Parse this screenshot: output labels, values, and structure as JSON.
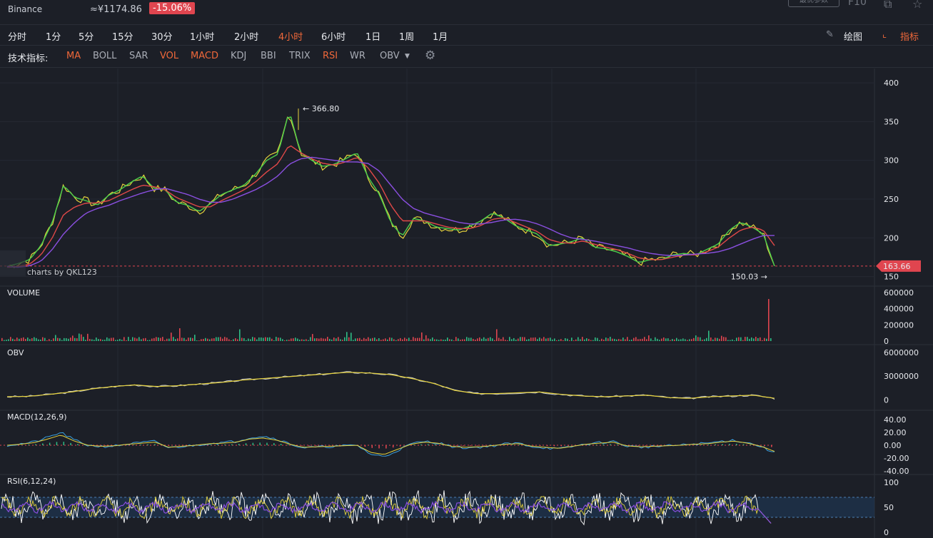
{
  "header": {
    "exchange": "Binance",
    "cny_price": "≈¥1174.86",
    "change": "-15.06%",
    "top_button": "最优参数",
    "f10": "F10"
  },
  "timeframes": [
    {
      "label": "分时",
      "active": false
    },
    {
      "label": "1分",
      "active": false
    },
    {
      "label": "5分",
      "active": false
    },
    {
      "label": "15分",
      "active": false
    },
    {
      "label": "30分",
      "active": false
    },
    {
      "label": "1小时",
      "active": false
    },
    {
      "label": "2小时",
      "active": false
    },
    {
      "label": "4小时",
      "active": true
    },
    {
      "label": "6小时",
      "active": false
    },
    {
      "label": "1日",
      "active": false
    },
    {
      "label": "1周",
      "active": false
    },
    {
      "label": "1月",
      "active": false
    }
  ],
  "tools": {
    "draw": "绘图",
    "indicators": "指标"
  },
  "indicator_bar": {
    "title": "技术指标:",
    "items": [
      {
        "label": "MA",
        "on": true
      },
      {
        "label": "BOLL",
        "on": false
      },
      {
        "label": "SAR",
        "on": false
      },
      {
        "label": "VOL",
        "on": true
      },
      {
        "label": "MACD",
        "on": true
      },
      {
        "label": "KDJ",
        "on": false
      },
      {
        "label": "BBI",
        "on": false
      },
      {
        "label": "TRIX",
        "on": false
      },
      {
        "label": "RSI",
        "on": true
      },
      {
        "label": "WR",
        "on": false
      },
      {
        "label": "OBV",
        "on": false
      }
    ]
  },
  "colors": {
    "up": "#2fbd85",
    "down": "#e0454f",
    "accent": "#f0683a",
    "ma_purple": "#8a4fe0",
    "ma_yellow": "#e6d23c",
    "ma_green": "#4ccf4c",
    "ma_red": "#e04848"
  },
  "chart_data": [
    {
      "type": "line",
      "panel": "price",
      "watermark": "charts by QKL123",
      "yticks": [
        400,
        350,
        300,
        250,
        200,
        150
      ],
      "ylim": [
        146,
        413
      ],
      "high_marker": {
        "value": 366.8,
        "label": "366.80"
      },
      "low_marker": {
        "value": 150.03,
        "label": "150.03"
      },
      "last_price": {
        "value": 163.66,
        "label": "163.66"
      },
      "series": [
        {
          "values": [
            163,
            167,
            172,
            190,
            220,
            268,
            252,
            248,
            242,
            255,
            262,
            272,
            280,
            264,
            262,
            246,
            242,
            234,
            244,
            256,
            262,
            268,
            282,
            300,
            308,
            364,
            310,
            300,
            292,
            295,
            302,
            310,
            278,
            256,
            220,
            202,
            225,
            222,
            214,
            212,
            210,
            215,
            222,
            232,
            226,
            216,
            210,
            205,
            190,
            192,
            195,
            200,
            188,
            186,
            182,
            176,
            168,
            172,
            172,
            178,
            180,
            178,
            185,
            192,
            210,
            220,
            214,
            205,
            163.66
          ]
        },
        {
          "values": [
            162,
            163,
            166,
            178,
            200,
            230,
            240,
            245,
            245,
            248,
            255,
            262,
            268,
            266,
            262,
            252,
            246,
            240,
            240,
            248,
            255,
            262,
            272,
            285,
            296,
            320,
            310,
            302,
            296,
            294,
            298,
            304,
            290,
            270,
            242,
            222,
            222,
            222,
            218,
            214,
            212,
            212,
            216,
            224,
            226,
            220,
            214,
            208,
            198,
            194,
            193,
            196,
            192,
            188,
            185,
            180,
            174,
            172,
            172,
            175,
            178,
            178,
            182,
            188,
            200,
            210,
            214,
            210,
            190
          ]
        },
        {
          "values": [
            163,
            162,
            164,
            170,
            185,
            205,
            220,
            232,
            238,
            242,
            248,
            253,
            258,
            262,
            264,
            260,
            256,
            250,
            246,
            246,
            250,
            256,
            262,
            270,
            280,
            295,
            302,
            304,
            302,
            300,
            298,
            298,
            296,
            286,
            268,
            250,
            238,
            232,
            228,
            224,
            220,
            218,
            218,
            220,
            223,
            224,
            222,
            218,
            212,
            205,
            200,
            198,
            196,
            193,
            190,
            187,
            183,
            180,
            178,
            177,
            178,
            179,
            180,
            182,
            186,
            192,
            198,
            203,
            203
          ]
        }
      ]
    },
    {
      "type": "bar",
      "panel": "volume",
      "title": "VOLUME",
      "yticks": [
        600000,
        400000,
        200000,
        0
      ],
      "ylim": [
        0,
        600000
      ]
    },
    {
      "type": "line",
      "panel": "obv",
      "title": "OBV",
      "yticks": [
        6000000,
        3000000,
        0
      ],
      "ylim": [
        -500000,
        6000000
      ],
      "series": [
        {
          "values": [
            400000,
            450000,
            700000,
            1000000,
            1400000,
            1700000,
            1900000,
            1700000,
            1800000,
            2000000,
            2200000,
            2500000,
            2700000,
            2900000,
            3100000,
            3300000,
            3500000,
            3400000,
            3200000,
            2700000,
            2100000,
            1200000,
            800000,
            800000,
            900000,
            1000000,
            700000,
            500000,
            400000,
            500000,
            600000,
            300000,
            200000,
            400000,
            500000,
            600000,
            200000
          ]
        }
      ]
    },
    {
      "type": "line",
      "panel": "macd",
      "title": "MACD(12,26,9)",
      "yticks": [
        40.0,
        20.0,
        0.0,
        -20.0,
        -40.0
      ],
      "ylim": [
        -40,
        40
      ]
    },
    {
      "type": "line",
      "panel": "rsi",
      "title": "RSI(6,12,24)",
      "yticks": [
        100,
        50,
        0
      ],
      "ylim": [
        0,
        100
      ],
      "bands": [
        30,
        70
      ]
    }
  ]
}
